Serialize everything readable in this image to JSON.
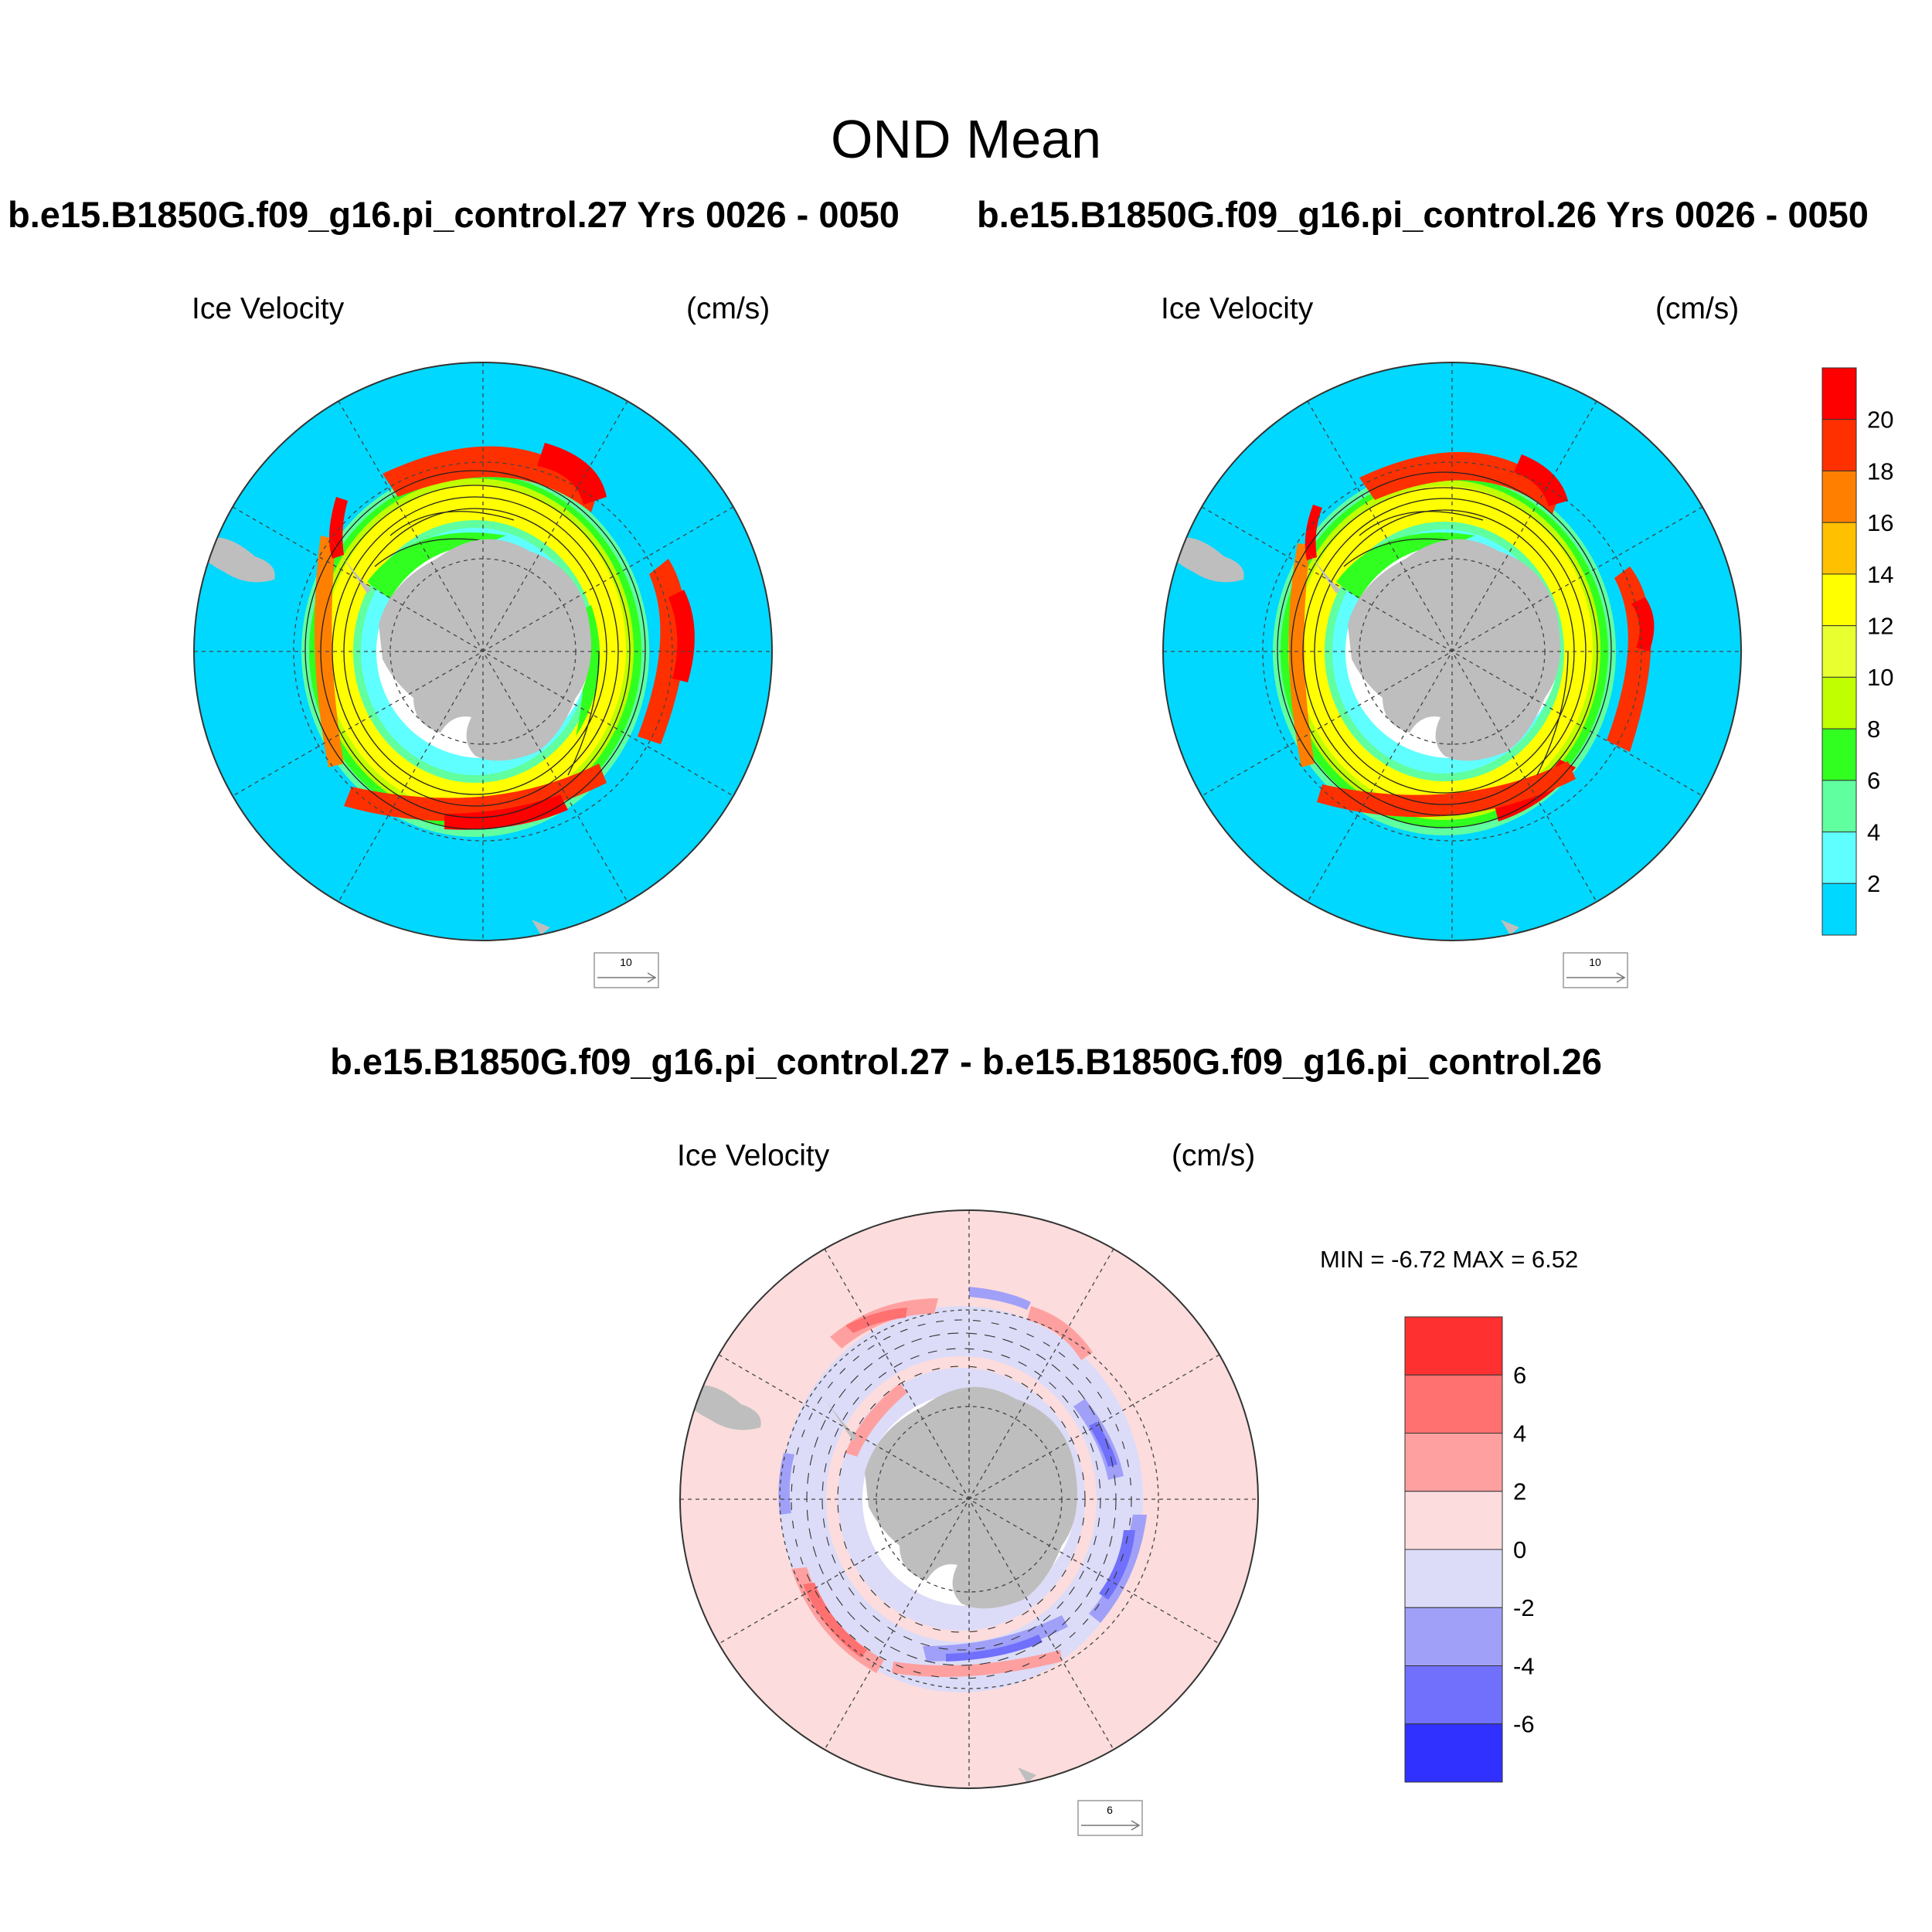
{
  "figure": {
    "title": "OND Mean",
    "panels": [
      {
        "id": "case",
        "heading": "b.e15.B1850G.f09_g16.pi_control.27  Yrs 0026 - 0050",
        "variable": "Ice Velocity",
        "units": "(cm/s)",
        "reference_vector": "10",
        "ocean_color": "#00d8ff",
        "land_color": "#bebebe"
      },
      {
        "id": "control",
        "heading": "b.e15.B1850G.f09_g16.pi_control.26  Yrs 0026 - 0050",
        "variable": "Ice Velocity",
        "units": "(cm/s)",
        "reference_vector": "10",
        "ocean_color": "#00d8ff",
        "land_color": "#bebebe"
      },
      {
        "id": "difference",
        "heading": "b.e15.B1850G.f09_g16.pi_control.27 - b.e15.B1850G.f09_g16.pi_control.26",
        "variable": "Ice Velocity",
        "units": "(cm/s)",
        "reference_vector": "6",
        "stats": "MIN =  -6.72 MAX =   6.52",
        "ocean_color": "#fcdcdc",
        "land_color": "#bebebe"
      }
    ],
    "colorbar_speed": {
      "labels": [
        "20",
        "18",
        "16",
        "14",
        "12",
        "10",
        "8",
        "6",
        "4",
        "2"
      ],
      "colors": [
        "#ff0000",
        "#ff3000",
        "#ff8000",
        "#ffc000",
        "#ffff00",
        "#e8ff30",
        "#c0ff00",
        "#30ff20",
        "#60ffa0",
        "#60ffff",
        "#00d8ff"
      ]
    },
    "colorbar_diff": {
      "labels": [
        "6",
        "4",
        "2",
        "0",
        "-2",
        "-4",
        "-6"
      ],
      "colors": [
        "#ff3030",
        "#ff7070",
        "#ffa0a0",
        "#fcdcdc",
        "#dcdcf8",
        "#a0a0f8",
        "#7070fc",
        "#3030ff"
      ]
    }
  }
}
